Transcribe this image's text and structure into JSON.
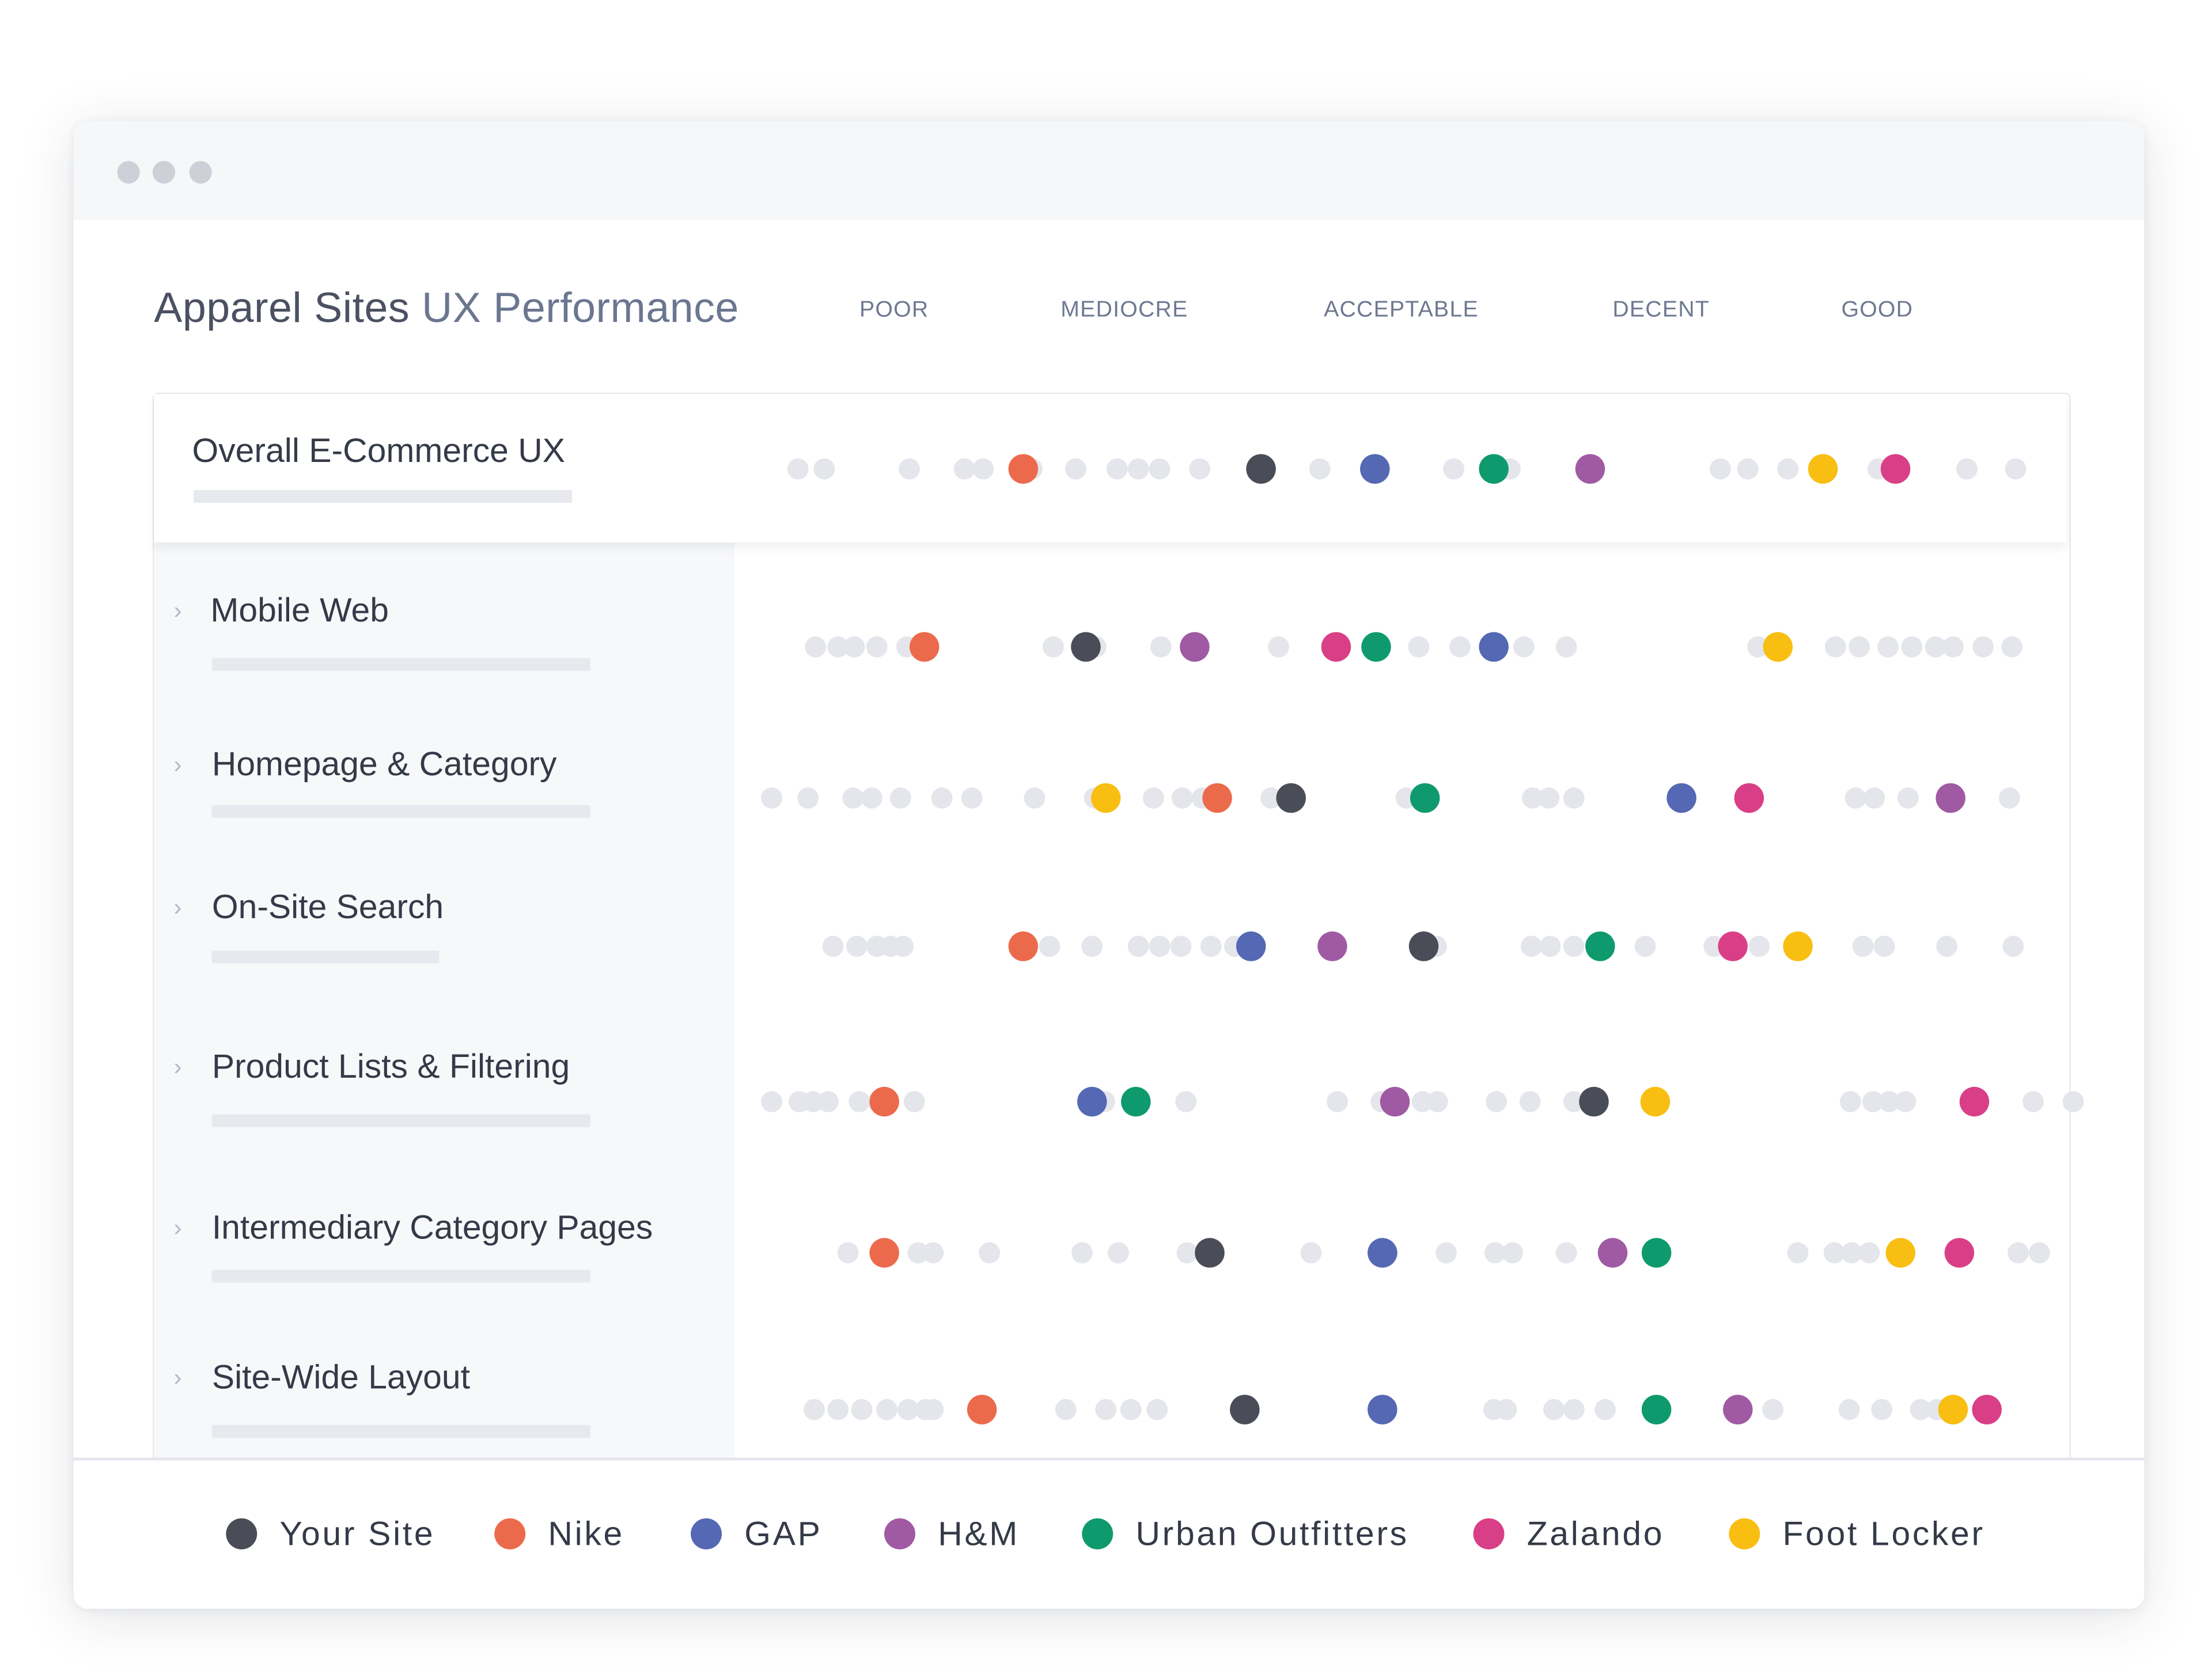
{
  "window": {
    "traffic_lights": [
      "close",
      "minimize",
      "zoom"
    ]
  },
  "heading": {
    "title_main": "Apparel Sites",
    "title_accent": "UX Performance"
  },
  "scale_labels": [
    "POOR",
    "MEDIOCRE",
    "ACCEPTABLE",
    "DECENT",
    "GOOD"
  ],
  "legend": [
    {
      "name": "Your Site",
      "color": "#4a4d57"
    },
    {
      "name": "Nike",
      "color": "#ec6a4c"
    },
    {
      "name": "GAP",
      "color": "#5468b3"
    },
    {
      "name": "H&M",
      "color": "#a05aa3"
    },
    {
      "name": "Urban Outfitters",
      "color": "#0f9a6e"
    },
    {
      "name": "Zalando",
      "color": "#d93f86"
    },
    {
      "name": "Foot Locker",
      "color": "#f9be12"
    }
  ],
  "background_dot_color": "#e4e6ec",
  "chart_data": {
    "type": "scatter",
    "x_scale": "UX performance: POOR → GOOD",
    "xlim": [
      0,
      100
    ],
    "categories": [
      "Overall E-Commerce UX",
      "Mobile Web",
      "Homepage & Category",
      "On-Site Search",
      "Product Lists & Filtering",
      "Intermediary Category Pages",
      "Site-Wide Layout"
    ],
    "series": [
      {
        "name": "Your Site",
        "values": [
          39.7,
          25.7,
          42.1,
          52.7,
          66.3,
          35.6,
          38.4
        ]
      },
      {
        "name": "Nike",
        "values": [
          20.7,
          12.8,
          36.2,
          20.7,
          9.6,
          9.6,
          17.4
        ]
      },
      {
        "name": "GAP",
        "values": [
          48.8,
          58.3,
          73.3,
          38.9,
          26.2,
          49.4,
          49.4
        ]
      },
      {
        "name": "H&M",
        "values": [
          66.0,
          34.4,
          94.8,
          45.4,
          50.4,
          67.8,
          77.8
        ]
      },
      {
        "name": "Urban Outfitters",
        "values": [
          58.3,
          48.9,
          52.8,
          66.8,
          29.7,
          71.3,
          71.3
        ]
      },
      {
        "name": "Zalando",
        "values": [
          90.4,
          45.7,
          78.7,
          77.4,
          96.7,
          95.5,
          97.7
        ]
      },
      {
        "name": "Foot Locker",
        "values": [
          84.6,
          81.0,
          27.3,
          82.6,
          71.2,
          90.8,
          95.0
        ]
      }
    ],
    "background_points": [
      [
        2.7,
        4.8,
        11.6,
        16.0,
        17.5,
        21.4,
        24.9,
        28.2,
        29.9,
        31.6,
        34.8,
        44.4,
        55.1,
        59.6,
        76.4,
        78.6,
        81.8,
        89.0,
        100.0,
        96.1
      ],
      [
        4.1,
        5.9,
        7.2,
        9.0,
        11.4,
        23.1,
        26.5,
        31.7,
        41.1,
        52.3,
        55.6,
        60.7,
        64.1,
        79.4,
        85.6,
        87.5,
        89.8,
        91.7,
        93.6,
        95.0,
        97.4,
        99.7
      ],
      [
        0.6,
        3.5,
        7.1,
        8.6,
        10.9,
        14.2,
        16.6,
        21.6,
        26.4,
        31.1,
        33.4,
        35.0,
        40.5,
        51.3,
        61.4,
        62.7,
        64.7,
        87.2,
        88.7,
        91.4,
        99.5
      ],
      [
        5.5,
        7.4,
        9.0,
        10.1,
        11.1,
        22.8,
        26.2,
        29.9,
        31.6,
        33.3,
        35.7,
        37.6,
        53.7,
        61.3,
        62.8,
        64.7,
        70.4,
        75.9,
        79.5,
        87.8,
        89.5,
        94.5,
        99.8
      ],
      [
        0.6,
        2.8,
        3.9,
        5.1,
        7.6,
        9.1,
        12.0,
        27.2,
        33.7,
        45.8,
        49.3,
        52.6,
        53.8,
        58.5,
        61.2,
        64.7,
        71.3,
        86.8,
        88.6,
        89.9,
        91.2,
        101.4,
        104.6
      ],
      [
        6.7,
        12.3,
        13.5,
        18.0,
        25.4,
        28.3,
        33.8,
        43.7,
        49.8,
        54.5,
        58.4,
        59.8,
        64.1,
        82.6,
        85.5,
        86.9,
        88.3,
        100.2,
        101.9
      ],
      [
        4.0,
        5.9,
        7.8,
        9.8,
        11.5,
        12.9,
        13.5,
        24.1,
        27.3,
        29.3,
        31.4,
        49.6,
        58.3,
        59.3,
        63.1,
        64.7,
        67.2,
        80.6,
        86.7,
        89.3,
        92.4,
        93.7,
        95.3
      ]
    ]
  },
  "rows": [
    {
      "label": "Overall E-Commerce UX"
    },
    {
      "label": "Mobile Web"
    },
    {
      "label": "Homepage & Category"
    },
    {
      "label": "On-Site Search"
    },
    {
      "label": "Product Lists & Filtering"
    },
    {
      "label": "Intermediary Category Pages"
    },
    {
      "label": "Site-Wide Layout"
    }
  ],
  "chevron_glyph": "›"
}
